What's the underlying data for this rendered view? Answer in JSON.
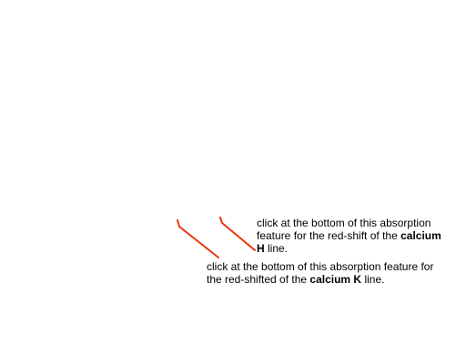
{
  "annotations": {
    "h_line": {
      "prefix": "click at the bottom of this absorption feature for the red-shift of the ",
      "emphasis_1": "calcium",
      "emphasis_2": "H",
      "suffix": " line."
    },
    "k_line": {
      "prefix": "click at the bottom of this absorption feature for the red-shifted of the ",
      "emphasis": "calcium K",
      "suffix": " line."
    },
    "pointer_color": "#e8380d"
  }
}
